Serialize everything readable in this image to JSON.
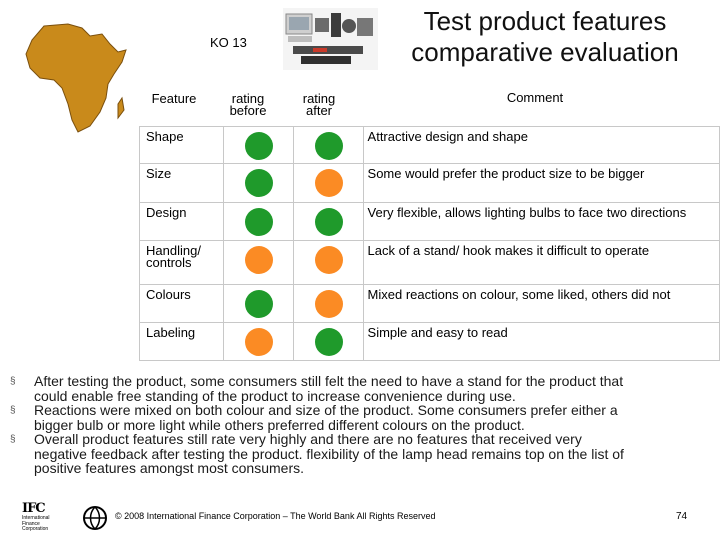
{
  "header": {
    "course_code": "KO 13",
    "title_line1": "Test product features",
    "title_line2": "comparative evaluation"
  },
  "table": {
    "columns": [
      "Feature",
      "rating",
      "before",
      "rating",
      "after",
      "Comment"
    ],
    "rows": [
      {
        "feature": "Shape",
        "feature_line2": "",
        "before": "green",
        "after": "green",
        "comment": "Attractive design and shape"
      },
      {
        "feature": "Size",
        "feature_line2": "",
        "before": "green",
        "after": "orange",
        "comment": "Some would prefer the product size to be bigger"
      },
      {
        "feature": "Design",
        "feature_line2": "",
        "before": "green",
        "after": "green",
        "comment": "Very flexible, allows lighting bulbs to face two directions"
      },
      {
        "feature": "Handling/",
        "feature_line2": "controls",
        "before": "orange",
        "after": "orange",
        "comment": "Lack of a stand/ hook makes it difficult to operate"
      },
      {
        "feature": "Colours",
        "feature_line2": "",
        "before": "green",
        "after": "orange",
        "comment": "Mixed reactions on colour, some liked, others did not"
      },
      {
        "feature": "Labeling",
        "feature_line2": "",
        "before": "orange",
        "after": "green",
        "comment": "Simple and easy to read"
      }
    ]
  },
  "colors": {
    "green": "#1f9a2b",
    "orange": "#fb8b24",
    "map": "#c98a1b"
  },
  "bullets": [
    {
      "marker": "§",
      "lines": [
        "After testing the product, some consumers still felt the need to have a stand for the product that",
        "could enable free standing of the product to increase convenience during use."
      ]
    },
    {
      "marker": "§",
      "lines": [
        "Reactions were mixed on both colour and size of the product. Some consumers prefer either a",
        "bigger bulb or more light while others preferred different colours on the product."
      ]
    },
    {
      "marker": "§",
      "lines": [
        "Overall product features still rate very highly and there are no features that received very",
        "negative feedback after testing the product.  flexibility of the lamp head remains top on the list of",
        "positive features amongst most consumers."
      ]
    }
  ],
  "footer": {
    "ifc_logo": "IFC",
    "ifc_line1": "International",
    "ifc_line2": "Finance",
    "ifc_line3": "Corporation",
    "copyright": "© 2008 International Finance Corporation – The World Bank All Rights Reserved",
    "page_number": "74"
  }
}
